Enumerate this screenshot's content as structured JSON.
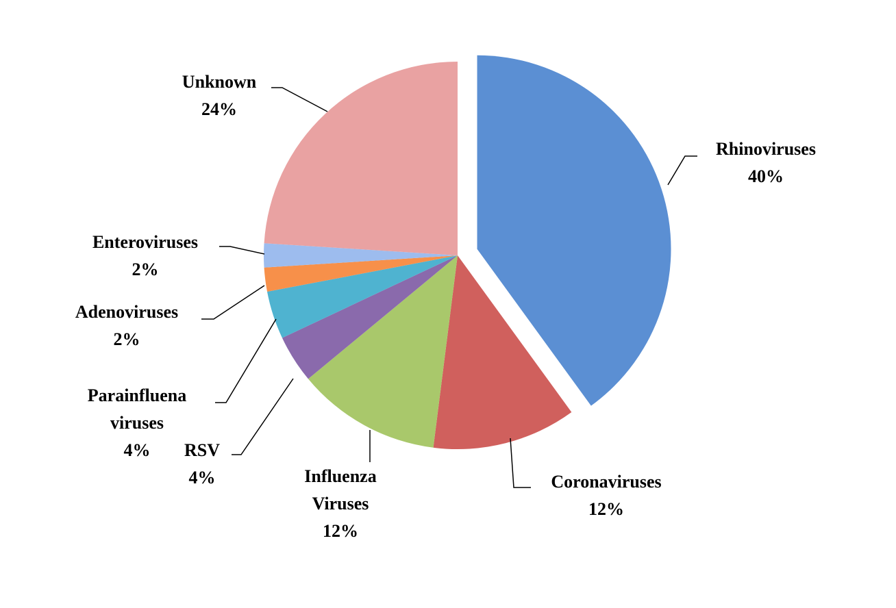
{
  "chart_data": {
    "type": "pie",
    "categories": [
      "Rhinoviruses",
      "Coronaviruses",
      "Influenza Viruses",
      "RSV",
      "Parainfluena viruses",
      "Adenoviruses",
      "Enteroviruses",
      "Unknown"
    ],
    "values": [
      40,
      12,
      12,
      4,
      4,
      2,
      2,
      24
    ],
    "value_labels": [
      "40%",
      "12%",
      "12%",
      "4%",
      "4%",
      "2%",
      "2%",
      "24%"
    ],
    "colors": [
      "#5b8fd3",
      "#d0605d",
      "#a9c86b",
      "#8a6aac",
      "#4fb3d0",
      "#f7904a",
      "#9dbcee",
      "#e9a2a2"
    ]
  }
}
